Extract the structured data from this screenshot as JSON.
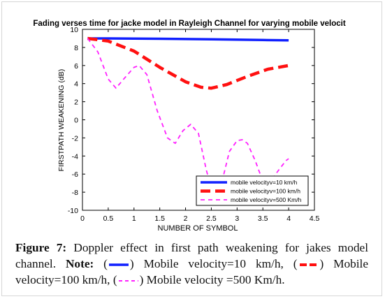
{
  "chart_data": {
    "type": "line",
    "title": "Fading verses time for jacke model in Rayleigh Channel for varying mobile velocit",
    "xlabel": "NUMBER OF SYMBOL",
    "ylabel": "FIRSTPATH WEAKENING (dB)",
    "xlim": [
      0,
      4.5
    ],
    "ylim": [
      -10,
      10
    ],
    "xticks": [
      0,
      0.5,
      1,
      1.5,
      2,
      2.5,
      3,
      3.5,
      4,
      4.5
    ],
    "xtick_labels": [
      "0",
      "0.5",
      "1",
      "1.5",
      "2",
      "2.5",
      "3",
      "3.5",
      "4",
      "4.5"
    ],
    "yticks": [
      -10,
      -8,
      -6,
      -4,
      -2,
      0,
      2,
      4,
      6,
      8,
      10
    ],
    "ytick_labels": [
      "-10",
      "-8",
      "-6",
      "-4",
      "-2",
      "0",
      "2",
      "4",
      "6",
      "8",
      "10"
    ],
    "grid": false,
    "legend_position": "bottom-right",
    "series": [
      {
        "name": "mobile velocityv=10 km/h",
        "color": "#1020ff",
        "style": "solid",
        "x": [
          0.1,
          0.5,
          1.0,
          1.5,
          2.0,
          2.5,
          3.0,
          3.5,
          4.0
        ],
        "y": [
          9.0,
          9.0,
          8.98,
          8.96,
          8.93,
          8.9,
          8.86,
          8.82,
          8.78
        ]
      },
      {
        "name": "mobile velocityv=100 km/h",
        "color": "#ff1010",
        "style": "dashed",
        "x": [
          0.1,
          0.5,
          1.0,
          1.5,
          2.0,
          2.3,
          2.5,
          2.8,
          3.2,
          3.6,
          4.0
        ],
        "y": [
          9.0,
          8.7,
          7.6,
          5.8,
          4.2,
          3.6,
          3.5,
          3.9,
          4.8,
          5.6,
          6.0
        ]
      },
      {
        "name": "mobile velocityv=500 Km/h",
        "color": "#ff20ff",
        "style": "dashed",
        "x": [
          0.1,
          0.3,
          0.5,
          0.65,
          0.8,
          1.0,
          1.1,
          1.25,
          1.45,
          1.65,
          1.8,
          1.95,
          2.1,
          2.25,
          2.4,
          2.55,
          2.7,
          2.85,
          3.0,
          3.1,
          3.2,
          3.35,
          3.5,
          3.65,
          3.8,
          3.95,
          4.0
        ],
        "y": [
          9.0,
          7.5,
          4.5,
          3.5,
          4.5,
          5.8,
          6.0,
          5.0,
          1.0,
          -2.0,
          -2.6,
          -1.2,
          -0.5,
          -1.5,
          -5.5,
          -8.6,
          -7.0,
          -3.5,
          -2.3,
          -2.2,
          -2.6,
          -4.5,
          -6.8,
          -6.8,
          -5.6,
          -4.5,
          -4.3
        ]
      }
    ]
  },
  "caption": {
    "figure_label": "Figure 7:",
    "text1": " Doppler effect in first path weakening for jakes model channel. ",
    "note_label": "Note:",
    "text2": " (",
    "text3": ") Mobile velocity=10 km/h, (",
    "text4": ") Mobile velocity=100 km/h, (",
    "text5": ") Mobile velocity =500 Km/h."
  }
}
